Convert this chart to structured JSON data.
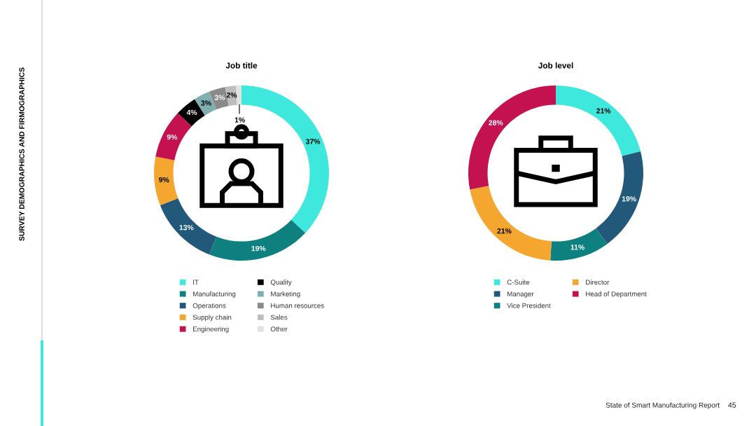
{
  "chart_data": [
    {
      "type": "donut",
      "title": "Job title",
      "categories": [
        "IT",
        "Manufacturing",
        "Operations",
        "Supply chain",
        "Engineering",
        "Quality",
        "Marketing",
        "Human resources",
        "Sales",
        "Other"
      ],
      "values": [
        37,
        19,
        13,
        9,
        9,
        4,
        3,
        3,
        2,
        1
      ],
      "colors": [
        "#3ee8dc",
        "#0f8080",
        "#22597a",
        "#f5a62e",
        "#c4114f",
        "#000000",
        "#7fafb0",
        "#8a8a8a",
        "#bdbdbd",
        "#e2e2e2"
      ],
      "value_labels": [
        "37%",
        "19%",
        "13%",
        "9%",
        "9%",
        "4%",
        "3%",
        "3%",
        "2%",
        "1%"
      ],
      "legend": "bottom",
      "annotations": [
        "SURVEY DEMOGRAPHICS AND FIRMOGRAPHICS"
      ]
    },
    {
      "type": "donut",
      "title": "Job level",
      "categories": [
        "C-Suite",
        "Manager",
        "Vice President",
        "Director",
        "Head of Department"
      ],
      "values": [
        21,
        19,
        11,
        21,
        28
      ],
      "colors": [
        "#3ee8dc",
        "#22597a",
        "#0f8080",
        "#f5a62e",
        "#c4114f"
      ],
      "value_labels": [
        "21%",
        "19%",
        "11%",
        "21%",
        "28%"
      ],
      "legend": "bottom",
      "annotations": [
        "State of Smart Manufacturing Report",
        "45"
      ]
    }
  ]
}
